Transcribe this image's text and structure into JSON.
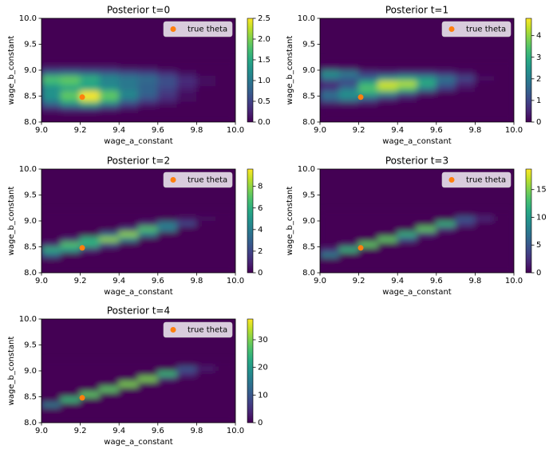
{
  "chart_data": [
    {
      "type": "heatmap",
      "title": "Posterior t=0",
      "xlabel": "wage_a_constant",
      "ylabel": "wage_b_constant",
      "colormap": "viridis",
      "legend": "upper right",
      "x": [
        9.05,
        9.15,
        9.25,
        9.35,
        9.45,
        9.55,
        9.65,
        9.75,
        9.85,
        9.95
      ],
      "y": [
        8.05,
        8.15,
        8.25,
        8.35,
        8.45,
        8.55,
        8.65,
        8.75,
        8.85,
        8.95,
        9.05,
        9.15
      ],
      "z": [
        [
          0,
          0,
          0,
          0,
          0,
          0,
          0,
          0,
          0,
          0
        ],
        [
          0,
          0,
          0,
          0,
          0,
          0,
          0,
          0,
          0,
          0
        ],
        [
          0.2,
          0.3,
          0.3,
          0.2,
          0.1,
          0,
          0,
          0,
          0,
          0
        ],
        [
          0.8,
          1.2,
          1.5,
          1.0,
          0.5,
          0.2,
          0.1,
          0,
          0,
          0
        ],
        [
          1.2,
          1.8,
          2.4,
          1.8,
          1.0,
          0.6,
          0.3,
          0.1,
          0,
          0
        ],
        [
          1.3,
          1.9,
          2.5,
          1.9,
          1.2,
          0.8,
          0.4,
          0.1,
          0,
          0
        ],
        [
          1.2,
          1.4,
          1.6,
          1.3,
          1.0,
          0.8,
          0.5,
          0.2,
          0,
          0
        ],
        [
          1.6,
          1.8,
          1.4,
          1.1,
          1.0,
          0.8,
          0.6,
          0.3,
          0.1,
          0
        ],
        [
          1.8,
          1.9,
          1.6,
          1.2,
          1.0,
          0.9,
          0.6,
          0.3,
          0.1,
          0
        ],
        [
          0.8,
          0.9,
          0.8,
          0.7,
          0.6,
          0.5,
          0.3,
          0.1,
          0,
          0
        ],
        [
          0.2,
          0.2,
          0.2,
          0.2,
          0.1,
          0.1,
          0,
          0,
          0,
          0
        ],
        [
          0,
          0,
          0,
          0,
          0,
          0,
          0,
          0,
          0,
          0
        ]
      ],
      "xlim": [
        9,
        10
      ],
      "ylim": [
        8,
        10
      ],
      "xticks": [
        {
          "value": 9,
          "label": "9.0"
        },
        9.2,
        9.4,
        9.6,
        9.8,
        {
          "value": 10,
          "label": "10.0"
        }
      ],
      "yticks": [
        {
          "value": 8,
          "label": "8.0"
        },
        8.5,
        {
          "value": 9,
          "label": "9.0"
        },
        9.5,
        {
          "value": 10,
          "label": "10.0"
        }
      ],
      "clim": [
        0,
        2.5
      ],
      "cticks": [
        {
          "value": 0,
          "label": "0.0"
        },
        0.5,
        {
          "value": 1,
          "label": "1.0"
        },
        1.5,
        {
          "value": 2,
          "label": "2.0"
        },
        2.5
      ],
      "series": [
        {
          "name": "true theta",
          "color": "#ff7f0e",
          "x": [
            9.21
          ],
          "y": [
            8.48
          ]
        }
      ]
    },
    {
      "type": "heatmap",
      "title": "Posterior t=1",
      "xlabel": "wage_a_constant",
      "ylabel": "wage_b_constant",
      "colormap": "viridis",
      "legend": "upper right",
      "x": [
        9.05,
        9.15,
        9.25,
        9.35,
        9.45,
        9.55,
        9.65,
        9.75,
        9.85,
        9.95
      ],
      "y": [
        8.05,
        8.15,
        8.25,
        8.35,
        8.45,
        8.55,
        8.65,
        8.75,
        8.85,
        8.95,
        9.05,
        9.15
      ],
      "z": [
        [
          0,
          0,
          0,
          0,
          0,
          0,
          0,
          0,
          0,
          0
        ],
        [
          0,
          0,
          0,
          0,
          0,
          0,
          0,
          0,
          0,
          0
        ],
        [
          0,
          0,
          0,
          0,
          0,
          0,
          0,
          0,
          0,
          0
        ],
        [
          0.3,
          0.3,
          0.2,
          0,
          0,
          0,
          0,
          0,
          0,
          0
        ],
        [
          1.5,
          2.0,
          1.2,
          0.5,
          0.2,
          0,
          0,
          0,
          0,
          0
        ],
        [
          1.8,
          2.5,
          2.8,
          2.2,
          1.0,
          0.3,
          0,
          0,
          0,
          0
        ],
        [
          0.8,
          1.8,
          3.5,
          4.2,
          3.5,
          2.0,
          0.8,
          0.2,
          0,
          0
        ],
        [
          0.5,
          1.0,
          3.0,
          4.5,
          4.3,
          3.0,
          1.5,
          0.5,
          0,
          0
        ],
        [
          1.8,
          1.5,
          1.5,
          2.5,
          2.8,
          2.5,
          1.8,
          1.0,
          0.2,
          0
        ],
        [
          2.5,
          2.0,
          0.8,
          0.6,
          0.8,
          0.8,
          0.6,
          0.3,
          0,
          0
        ],
        [
          0.3,
          0.2,
          0,
          0,
          0,
          0,
          0,
          0,
          0,
          0
        ],
        [
          0,
          0,
          0,
          0,
          0,
          0,
          0,
          0,
          0,
          0
        ]
      ],
      "xlim": [
        9,
        10
      ],
      "ylim": [
        8,
        10
      ],
      "xticks": [
        {
          "value": 9,
          "label": "9.0"
        },
        9.2,
        9.4,
        9.6,
        9.8,
        {
          "value": 10,
          "label": "10.0"
        }
      ],
      "yticks": [
        {
          "value": 8,
          "label": "8.0"
        },
        8.5,
        {
          "value": 9,
          "label": "9.0"
        },
        9.5,
        {
          "value": 10,
          "label": "10.0"
        }
      ],
      "clim": [
        0,
        4.8
      ],
      "cticks": [
        0,
        1,
        2,
        3,
        4
      ],
      "series": [
        {
          "name": "true theta",
          "color": "#ff7f0e",
          "x": [
            9.21
          ],
          "y": [
            8.48
          ]
        }
      ]
    },
    {
      "type": "heatmap",
      "title": "Posterior t=2",
      "xlabel": "wage_a_constant",
      "ylabel": "wage_b_constant",
      "colormap": "viridis",
      "legend": "upper right",
      "x": [
        9.05,
        9.15,
        9.25,
        9.35,
        9.45,
        9.55,
        9.65,
        9.75,
        9.85,
        9.95
      ],
      "y": [
        8.05,
        8.15,
        8.25,
        8.35,
        8.45,
        8.55,
        8.65,
        8.75,
        8.85,
        8.95,
        9.05,
        9.15
      ],
      "z": [
        [
          0,
          0,
          0,
          0,
          0,
          0,
          0,
          0,
          0,
          0
        ],
        [
          0,
          0,
          0,
          0,
          0,
          0,
          0,
          0,
          0,
          0
        ],
        [
          0,
          0,
          0,
          0,
          0,
          0,
          0,
          0,
          0,
          0
        ],
        [
          3,
          0,
          0,
          0,
          0,
          0,
          0,
          0,
          0,
          0
        ],
        [
          6,
          5,
          1,
          0,
          0,
          0,
          0,
          0,
          0,
          0
        ],
        [
          1,
          7,
          6,
          2,
          0,
          0,
          0,
          0,
          0,
          0
        ],
        [
          0,
          1,
          6,
          8,
          4,
          0,
          0,
          0,
          0,
          0
        ],
        [
          0,
          0,
          0,
          3,
          8,
          4,
          0,
          0,
          0,
          0
        ],
        [
          0,
          0,
          0,
          0,
          1.5,
          7,
          4,
          0,
          0,
          0
        ],
        [
          0,
          0,
          0,
          0,
          0,
          1,
          4,
          2,
          0,
          0
        ],
        [
          0,
          0,
          0,
          0,
          0,
          0,
          0,
          0.5,
          0.3,
          0
        ],
        [
          0,
          0,
          0,
          0,
          0,
          0,
          0,
          0,
          0,
          0
        ]
      ],
      "xlim": [
        9,
        10
      ],
      "ylim": [
        8,
        10
      ],
      "xticks": [
        {
          "value": 9,
          "label": "9.0"
        },
        9.2,
        9.4,
        9.6,
        9.8,
        {
          "value": 10,
          "label": "10.0"
        }
      ],
      "yticks": [
        {
          "value": 8,
          "label": "8.0"
        },
        8.5,
        {
          "value": 9,
          "label": "9.0"
        },
        9.5,
        {
          "value": 10,
          "label": "10.0"
        }
      ],
      "clim": [
        0,
        9.6
      ],
      "cticks": [
        0,
        2,
        4,
        6,
        8
      ],
      "series": [
        {
          "name": "true theta",
          "color": "#ff7f0e",
          "x": [
            9.21
          ],
          "y": [
            8.48
          ]
        }
      ]
    },
    {
      "type": "heatmap",
      "title": "Posterior t=3",
      "xlabel": "wage_a_constant",
      "ylabel": "wage_b_constant",
      "colormap": "viridis",
      "legend": "upper right",
      "x": [
        9.05,
        9.15,
        9.25,
        9.35,
        9.45,
        9.55,
        9.65,
        9.75,
        9.85,
        9.95
      ],
      "y": [
        8.05,
        8.15,
        8.25,
        8.35,
        8.45,
        8.55,
        8.65,
        8.75,
        8.85,
        8.95,
        9.05,
        9.15
      ],
      "z": [
        [
          0,
          0,
          0,
          0,
          0,
          0,
          0,
          0,
          0,
          0
        ],
        [
          0,
          0,
          0,
          0,
          0,
          0,
          0,
          0,
          0,
          0
        ],
        [
          0,
          0,
          0,
          0,
          0,
          0,
          0,
          0,
          0,
          0
        ],
        [
          8,
          0,
          0,
          0,
          0,
          0,
          0,
          0,
          0,
          0
        ],
        [
          2,
          12,
          0,
          0,
          0,
          0,
          0,
          0,
          0,
          0
        ],
        [
          0,
          1,
          14,
          0,
          0,
          0,
          0,
          0,
          0,
          0
        ],
        [
          0,
          0,
          0,
          14,
          4,
          0,
          0,
          0,
          0,
          0
        ],
        [
          0,
          0,
          0,
          0,
          12,
          2,
          0,
          0,
          0,
          0
        ],
        [
          0,
          0,
          0,
          0,
          0,
          14,
          2,
          0,
          0,
          0
        ],
        [
          0,
          0,
          0,
          0,
          0,
          0,
          12,
          3,
          0,
          0
        ],
        [
          0,
          0,
          0,
          0,
          0,
          0,
          0,
          5,
          2,
          0
        ],
        [
          0,
          0,
          0,
          0,
          0,
          0,
          0,
          0,
          0,
          0
        ]
      ],
      "xlim": [
        9,
        10
      ],
      "ylim": [
        8,
        10
      ],
      "xticks": [
        {
          "value": 9,
          "label": "9.0"
        },
        9.2,
        9.4,
        9.6,
        9.8,
        {
          "value": 10,
          "label": "10.0"
        }
      ],
      "yticks": [
        {
          "value": 8,
          "label": "8.0"
        },
        8.5,
        {
          "value": 9,
          "label": "9.0"
        },
        9.5,
        {
          "value": 10,
          "label": "10.0"
        }
      ],
      "clim": [
        0,
        18.7
      ],
      "cticks": [
        0,
        5,
        10,
        15
      ],
      "series": [
        {
          "name": "true theta",
          "color": "#ff7f0e",
          "x": [
            9.21
          ],
          "y": [
            8.48
          ]
        }
      ]
    },
    {
      "type": "heatmap",
      "title": "Posterior t=4",
      "xlabel": "wage_a_constant",
      "ylabel": "wage_b_constant",
      "colormap": "viridis",
      "legend": "upper right",
      "x": [
        9.05,
        9.15,
        9.25,
        9.35,
        9.45,
        9.55,
        9.65,
        9.75,
        9.85,
        9.95
      ],
      "y": [
        8.05,
        8.15,
        8.25,
        8.35,
        8.45,
        8.55,
        8.65,
        8.75,
        8.85,
        8.95,
        9.05,
        9.15
      ],
      "z": [
        [
          0,
          0,
          0,
          0,
          0,
          0,
          0,
          0,
          0,
          0
        ],
        [
          0,
          0,
          0,
          0,
          0,
          0,
          0,
          0,
          0,
          0
        ],
        [
          0,
          0,
          0,
          0,
          0,
          0,
          0,
          0,
          0,
          0
        ],
        [
          15,
          0,
          0,
          0,
          0,
          0,
          0,
          0,
          0,
          0
        ],
        [
          0,
          25,
          0,
          0,
          0,
          0,
          0,
          0,
          0,
          0
        ],
        [
          0,
          0,
          28,
          0,
          0,
          0,
          0,
          0,
          0,
          0
        ],
        [
          0,
          0,
          0,
          28,
          0,
          0,
          0,
          0,
          0,
          0
        ],
        [
          0,
          0,
          0,
          0,
          30,
          0,
          0,
          0,
          0,
          0
        ],
        [
          0,
          0,
          0,
          0,
          0,
          30,
          3,
          0,
          0,
          0
        ],
        [
          0,
          0,
          0,
          0,
          0,
          0,
          25,
          5,
          0,
          0
        ],
        [
          0,
          0,
          0,
          0,
          0,
          0,
          0,
          10,
          3,
          0
        ],
        [
          0,
          0,
          0,
          0,
          0,
          0,
          0,
          0,
          0,
          0
        ]
      ],
      "xlim": [
        9,
        10
      ],
      "ylim": [
        8,
        10
      ],
      "xticks": [
        {
          "value": 9,
          "label": "9.0"
        },
        9.2,
        9.4,
        9.6,
        9.8,
        {
          "value": 10,
          "label": "10.0"
        }
      ],
      "yticks": [
        {
          "value": 8,
          "label": "8.0"
        },
        8.5,
        {
          "value": 9,
          "label": "9.0"
        },
        9.5,
        {
          "value": 10,
          "label": "10.0"
        }
      ],
      "clim": [
        0,
        37.5
      ],
      "cticks": [
        0,
        10,
        20,
        30
      ],
      "series": [
        {
          "name": "true theta",
          "color": "#ff7f0e",
          "x": [
            9.21
          ],
          "y": [
            8.48
          ]
        }
      ]
    }
  ]
}
